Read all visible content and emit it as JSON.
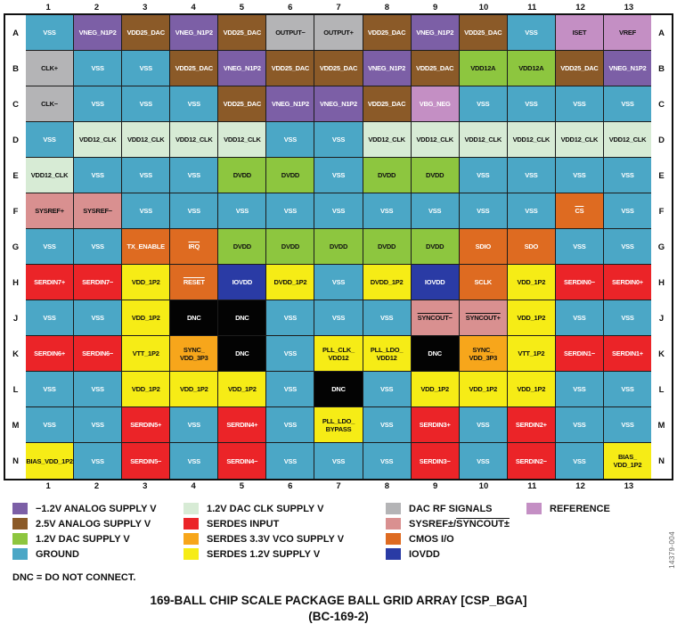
{
  "colors": {
    "gnd": {
      "bg": "#4BA7C6",
      "text": "#ffffff"
    },
    "neg": {
      "bg": "#7C5FA6",
      "text": "#ffffff"
    },
    "a25": {
      "bg": "#8B5A28",
      "text": "#ffffff"
    },
    "dac": {
      "bg": "#8DC63F",
      "text": "#111111"
    },
    "clk": {
      "bg": "#D7EBD5",
      "text": "#111111"
    },
    "ser": {
      "bg": "#EB2428",
      "text": "#ffffff"
    },
    "vco": {
      "bg": "#F7A61B",
      "text": "#111111"
    },
    "y12": {
      "bg": "#F6EC16",
      "text": "#111111"
    },
    "rf": {
      "bg": "#B4B4B6",
      "text": "#111111"
    },
    "sys": {
      "bg": "#D99090",
      "text": "#111111"
    },
    "cmos": {
      "bg": "#DE6B21",
      "text": "#ffffff"
    },
    "io": {
      "bg": "#2A3BA5",
      "text": "#ffffff"
    },
    "ref": {
      "bg": "#C48FC4",
      "text": "#111111"
    },
    "refw": {
      "bg": "#C48FC4",
      "text": "#ffffff"
    },
    "dnc": {
      "bg": "#030303",
      "text": "#ffffff"
    }
  },
  "grid": {
    "col_labels": [
      "1",
      "2",
      "3",
      "4",
      "5",
      "6",
      "7",
      "8",
      "9",
      "10",
      "11",
      "12",
      "13"
    ],
    "rows": [
      {
        "row": "A",
        "cells": [
          {
            "l": "VSS",
            "c": "gnd"
          },
          {
            "l": "VNEG_N1P2",
            "c": "neg"
          },
          {
            "l": "VDD25_DAC",
            "c": "a25"
          },
          {
            "l": "VNEG_N1P2",
            "c": "neg"
          },
          {
            "l": "VDD25_DAC",
            "c": "a25"
          },
          {
            "l": "OUTPUT−",
            "c": "rf"
          },
          {
            "l": "OUTPUT+",
            "c": "rf"
          },
          {
            "l": "VDD25_DAC",
            "c": "a25"
          },
          {
            "l": "VNEG_N1P2",
            "c": "neg"
          },
          {
            "l": "VDD25_DAC",
            "c": "a25"
          },
          {
            "l": "VSS",
            "c": "gnd"
          },
          {
            "l": "ISET",
            "c": "ref"
          },
          {
            "l": "VREF",
            "c": "ref"
          }
        ]
      },
      {
        "row": "B",
        "cells": [
          {
            "l": "CLK+",
            "c": "rf"
          },
          {
            "l": "VSS",
            "c": "gnd"
          },
          {
            "l": "VSS",
            "c": "gnd"
          },
          {
            "l": "VDD25_DAC",
            "c": "a25"
          },
          {
            "l": "VNEG_N1P2",
            "c": "neg"
          },
          {
            "l": "VDD25_DAC",
            "c": "a25"
          },
          {
            "l": "VDD25_DAC",
            "c": "a25"
          },
          {
            "l": "VNEG_N1P2",
            "c": "neg"
          },
          {
            "l": "VDD25_DAC",
            "c": "a25"
          },
          {
            "l": "VDD12A",
            "c": "dac"
          },
          {
            "l": "VDD12A",
            "c": "dac"
          },
          {
            "l": "VDD25_DAC",
            "c": "a25"
          },
          {
            "l": "VNEG_N1P2",
            "c": "neg"
          }
        ]
      },
      {
        "row": "C",
        "cells": [
          {
            "l": "CLK−",
            "c": "rf"
          },
          {
            "l": "VSS",
            "c": "gnd"
          },
          {
            "l": "VSS",
            "c": "gnd"
          },
          {
            "l": "VSS",
            "c": "gnd"
          },
          {
            "l": "VDD25_DAC",
            "c": "a25"
          },
          {
            "l": "VNEG_N1P2",
            "c": "neg"
          },
          {
            "l": "VNEG_N1P2",
            "c": "neg"
          },
          {
            "l": "VDD25_DAC",
            "c": "a25"
          },
          {
            "l": "VBG_NEG",
            "c": "refw"
          },
          {
            "l": "VSS",
            "c": "gnd"
          },
          {
            "l": "VSS",
            "c": "gnd"
          },
          {
            "l": "VSS",
            "c": "gnd"
          },
          {
            "l": "VSS",
            "c": "gnd"
          }
        ]
      },
      {
        "row": "D",
        "cells": [
          {
            "l": "VSS",
            "c": "gnd"
          },
          {
            "l": "VDD12_CLK",
            "c": "clk"
          },
          {
            "l": "VDD12_CLK",
            "c": "clk"
          },
          {
            "l": "VDD12_CLK",
            "c": "clk"
          },
          {
            "l": "VDD12_CLK",
            "c": "clk"
          },
          {
            "l": "VSS",
            "c": "gnd"
          },
          {
            "l": "VSS",
            "c": "gnd"
          },
          {
            "l": "VDD12_CLK",
            "c": "clk"
          },
          {
            "l": "VDD12_CLK",
            "c": "clk"
          },
          {
            "l": "VDD12_CLK",
            "c": "clk"
          },
          {
            "l": "VDD12_CLK",
            "c": "clk"
          },
          {
            "l": "VDD12_CLK",
            "c": "clk"
          },
          {
            "l": "VDD12_CLK",
            "c": "clk"
          }
        ]
      },
      {
        "row": "E",
        "cells": [
          {
            "l": "VDD12_CLK",
            "c": "clk"
          },
          {
            "l": "VSS",
            "c": "gnd"
          },
          {
            "l": "VSS",
            "c": "gnd"
          },
          {
            "l": "VSS",
            "c": "gnd"
          },
          {
            "l": "DVDD",
            "c": "dac"
          },
          {
            "l": "DVDD",
            "c": "dac"
          },
          {
            "l": "VSS",
            "c": "gnd"
          },
          {
            "l": "DVDD",
            "c": "dac"
          },
          {
            "l": "DVDD",
            "c": "dac"
          },
          {
            "l": "VSS",
            "c": "gnd"
          },
          {
            "l": "VSS",
            "c": "gnd"
          },
          {
            "l": "VSS",
            "c": "gnd"
          },
          {
            "l": "VSS",
            "c": "gnd"
          }
        ]
      },
      {
        "row": "F",
        "cells": [
          {
            "l": "SYSREF+",
            "c": "sys"
          },
          {
            "l": "SYSREF−",
            "c": "sys"
          },
          {
            "l": "VSS",
            "c": "gnd"
          },
          {
            "l": "VSS",
            "c": "gnd"
          },
          {
            "l": "VSS",
            "c": "gnd"
          },
          {
            "l": "VSS",
            "c": "gnd"
          },
          {
            "l": "VSS",
            "c": "gnd"
          },
          {
            "l": "VSS",
            "c": "gnd"
          },
          {
            "l": "VSS",
            "c": "gnd"
          },
          {
            "l": "VSS",
            "c": "gnd"
          },
          {
            "l": "VSS",
            "c": "gnd"
          },
          {
            "l": "CS",
            "c": "cmos",
            "ov": 1
          },
          {
            "l": "VSS",
            "c": "gnd"
          }
        ]
      },
      {
        "row": "G",
        "cells": [
          {
            "l": "VSS",
            "c": "gnd"
          },
          {
            "l": "VSS",
            "c": "gnd"
          },
          {
            "l": "TX_ENABLE",
            "c": "cmos"
          },
          {
            "l": "IRQ",
            "c": "cmos",
            "ov": 1
          },
          {
            "l": "DVDD",
            "c": "dac"
          },
          {
            "l": "DVDD",
            "c": "dac"
          },
          {
            "l": "DVDD",
            "c": "dac"
          },
          {
            "l": "DVDD",
            "c": "dac"
          },
          {
            "l": "DVDD",
            "c": "dac"
          },
          {
            "l": "SDIO",
            "c": "cmos"
          },
          {
            "l": "SDO",
            "c": "cmos"
          },
          {
            "l": "VSS",
            "c": "gnd"
          },
          {
            "l": "VSS",
            "c": "gnd"
          }
        ]
      },
      {
        "row": "H",
        "cells": [
          {
            "l": "SERDIN7+",
            "c": "ser"
          },
          {
            "l": "SERDIN7−",
            "c": "ser"
          },
          {
            "l": "VDD_1P2",
            "c": "y12"
          },
          {
            "l": "RESET",
            "c": "cmos",
            "ov": 1
          },
          {
            "l": "IOVDD",
            "c": "io"
          },
          {
            "l": "DVDD_1P2",
            "c": "y12"
          },
          {
            "l": "VSS",
            "c": "gnd"
          },
          {
            "l": "DVDD_1P2",
            "c": "y12"
          },
          {
            "l": "IOVDD",
            "c": "io"
          },
          {
            "l": "SCLK",
            "c": "cmos"
          },
          {
            "l": "VDD_1P2",
            "c": "y12"
          },
          {
            "l": "SERDIN0−",
            "c": "ser"
          },
          {
            "l": "SERDIN0+",
            "c": "ser"
          }
        ]
      },
      {
        "row": "J",
        "cells": [
          {
            "l": "VSS",
            "c": "gnd"
          },
          {
            "l": "VSS",
            "c": "gnd"
          },
          {
            "l": "VDD_1P2",
            "c": "y12"
          },
          {
            "l": "DNC",
            "c": "dnc"
          },
          {
            "l": "DNC",
            "c": "dnc"
          },
          {
            "l": "VSS",
            "c": "gnd"
          },
          {
            "l": "VSS",
            "c": "gnd"
          },
          {
            "l": "VSS",
            "c": "gnd"
          },
          {
            "l": "SYNCOUT−",
            "c": "sys",
            "ov": 1
          },
          {
            "l": "SYNCOUT+",
            "c": "sys",
            "ov": 1
          },
          {
            "l": "VDD_1P2",
            "c": "y12"
          },
          {
            "l": "VSS",
            "c": "gnd"
          },
          {
            "l": "VSS",
            "c": "gnd"
          }
        ]
      },
      {
        "row": "K",
        "cells": [
          {
            "l": "SERDIN6+",
            "c": "ser"
          },
          {
            "l": "SERDIN6−",
            "c": "ser"
          },
          {
            "l": "VTT_1P2",
            "c": "y12"
          },
          {
            "l": "SYNC_\nVDD_3P3",
            "c": "vco"
          },
          {
            "l": "DNC",
            "c": "dnc"
          },
          {
            "l": "VSS",
            "c": "gnd"
          },
          {
            "l": "PLL_CLK_\nVDD12",
            "c": "y12"
          },
          {
            "l": "PLL_LDO_\nVDD12",
            "c": "y12"
          },
          {
            "l": "DNC",
            "c": "dnc"
          },
          {
            "l": "SYNC_\nVDD_3P3",
            "c": "vco"
          },
          {
            "l": "VTT_1P2",
            "c": "y12"
          },
          {
            "l": "SERDIN1−",
            "c": "ser"
          },
          {
            "l": "SERDIN1+",
            "c": "ser"
          }
        ]
      },
      {
        "row": "L",
        "cells": [
          {
            "l": "VSS",
            "c": "gnd"
          },
          {
            "l": "VSS",
            "c": "gnd"
          },
          {
            "l": "VDD_1P2",
            "c": "y12"
          },
          {
            "l": "VDD_1P2",
            "c": "y12"
          },
          {
            "l": "VDD_1P2",
            "c": "y12"
          },
          {
            "l": "VSS",
            "c": "gnd"
          },
          {
            "l": "DNC",
            "c": "dnc"
          },
          {
            "l": "VSS",
            "c": "gnd"
          },
          {
            "l": "VDD_1P2",
            "c": "y12"
          },
          {
            "l": "VDD_1P2",
            "c": "y12"
          },
          {
            "l": "VDD_1P2",
            "c": "y12"
          },
          {
            "l": "VSS",
            "c": "gnd"
          },
          {
            "l": "VSS",
            "c": "gnd"
          }
        ]
      },
      {
        "row": "M",
        "cells": [
          {
            "l": "VSS",
            "c": "gnd"
          },
          {
            "l": "VSS",
            "c": "gnd"
          },
          {
            "l": "SERDIN5+",
            "c": "ser"
          },
          {
            "l": "VSS",
            "c": "gnd"
          },
          {
            "l": "SERDIN4+",
            "c": "ser"
          },
          {
            "l": "VSS",
            "c": "gnd"
          },
          {
            "l": "PLL_LDO_\nBYPASS",
            "c": "y12"
          },
          {
            "l": "VSS",
            "c": "gnd"
          },
          {
            "l": "SERDIN3+",
            "c": "ser"
          },
          {
            "l": "VSS",
            "c": "gnd"
          },
          {
            "l": "SERDIN2+",
            "c": "ser"
          },
          {
            "l": "VSS",
            "c": "gnd"
          },
          {
            "l": "VSS",
            "c": "gnd"
          }
        ]
      },
      {
        "row": "N",
        "cells": [
          {
            "l": "BIAS_VDD_1P2",
            "c": "y12"
          },
          {
            "l": "VSS",
            "c": "gnd"
          },
          {
            "l": "SERDIN5−",
            "c": "ser"
          },
          {
            "l": "VSS",
            "c": "gnd"
          },
          {
            "l": "SERDIN4−",
            "c": "ser"
          },
          {
            "l": "VSS",
            "c": "gnd"
          },
          {
            "l": "VSS",
            "c": "gnd"
          },
          {
            "l": "VSS",
            "c": "gnd"
          },
          {
            "l": "SERDIN3−",
            "c": "ser"
          },
          {
            "l": "VSS",
            "c": "gnd"
          },
          {
            "l": "SERDIN2−",
            "c": "ser"
          },
          {
            "l": "VSS",
            "c": "gnd"
          },
          {
            "l": "BIAS_\nVDD_1P2",
            "c": "y12"
          }
        ]
      }
    ]
  },
  "legend": {
    "columns": [
      [
        {
          "c": "neg",
          "label": "−1.2V ANALOG SUPPLY V"
        },
        {
          "c": "a25",
          "label": "2.5V ANALOG SUPPLY V"
        },
        {
          "c": "dac",
          "label": "1.2V DAC SUPPLY V"
        },
        {
          "c": "gnd",
          "label": "GROUND"
        }
      ],
      [
        {
          "c": "clk",
          "label": "1.2V DAC CLK SUPPLY V"
        },
        {
          "c": "ser",
          "label": "SERDES INPUT"
        },
        {
          "c": "vco",
          "label": "SERDES 3.3V VCO SUPPLY V"
        },
        {
          "c": "y12",
          "label": "SERDES 1.2V SUPPLY V"
        }
      ],
      [
        {
          "c": "rf",
          "label": "DAC RF SIGNALS"
        },
        {
          "c": "sys",
          "label": "SYSREF±/",
          "label_overline": "SYNCOUT±"
        },
        {
          "c": "cmos",
          "label": "CMOS  I/O"
        },
        {
          "c": "io",
          "label": "IOVDD"
        }
      ],
      [
        {
          "c": "ref",
          "label": "REFERENCE"
        }
      ]
    ]
  },
  "note": "DNC = DO NOT CONNECT.",
  "title": {
    "line1": "169-BALL CHIP SCALE PACKAGE BALL GRID ARRAY [CSP_BGA]",
    "line2": "(BC-169-2)"
  },
  "side_code": "14379-004"
}
